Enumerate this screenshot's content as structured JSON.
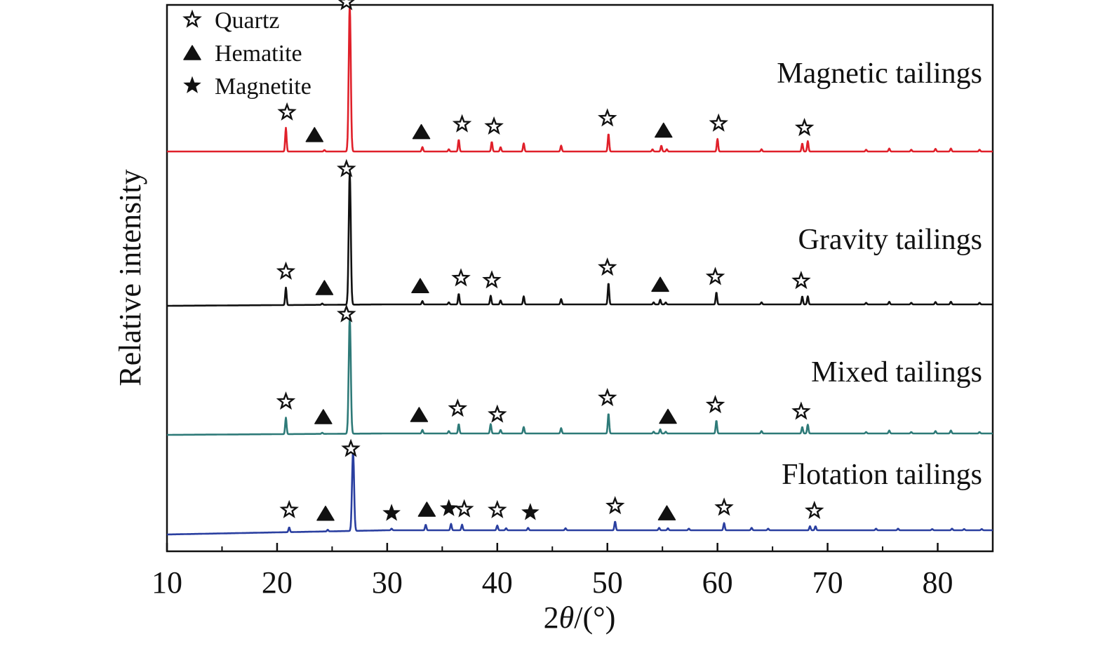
{
  "chart_data": {
    "type": "line",
    "xlabel": "2θ/(°)",
    "ylabel": "Relative intensity",
    "xlim": [
      10,
      85
    ],
    "x_ticks": [
      10,
      20,
      30,
      40,
      50,
      60,
      70,
      80
    ],
    "y_ticks": "none",
    "grid": false,
    "legend_position": "top-left",
    "legend": [
      {
        "name": "Quartz",
        "marker": "hollow-star"
      },
      {
        "name": "Hematite",
        "marker": "filled-triangle"
      },
      {
        "name": "Magnetite",
        "marker": "filled-star"
      }
    ],
    "series": [
      {
        "name": "Magnetic tailings",
        "color": "#e0202a",
        "peaks": [
          {
            "x": 20.8,
            "h": 0.16
          },
          {
            "x": 24.3,
            "h": 0.01
          },
          {
            "x": 26.6,
            "h": 1.0
          },
          {
            "x": 33.2,
            "h": 0.03
          },
          {
            "x": 35.6,
            "h": 0.015
          },
          {
            "x": 36.5,
            "h": 0.08
          },
          {
            "x": 39.5,
            "h": 0.065
          },
          {
            "x": 40.3,
            "h": 0.03
          },
          {
            "x": 42.4,
            "h": 0.055
          },
          {
            "x": 45.8,
            "h": 0.04
          },
          {
            "x": 50.1,
            "h": 0.12
          },
          {
            "x": 54.1,
            "h": 0.015
          },
          {
            "x": 54.9,
            "h": 0.04
          },
          {
            "x": 55.4,
            "h": 0.015
          },
          {
            "x": 60.0,
            "h": 0.085
          },
          {
            "x": 64.0,
            "h": 0.015
          },
          {
            "x": 67.7,
            "h": 0.055
          },
          {
            "x": 68.2,
            "h": 0.07
          },
          {
            "x": 73.5,
            "h": 0.012
          },
          {
            "x": 75.6,
            "h": 0.02
          },
          {
            "x": 77.6,
            "h": 0.012
          },
          {
            "x": 79.8,
            "h": 0.018
          },
          {
            "x": 81.2,
            "h": 0.02
          },
          {
            "x": 83.8,
            "h": 0.012
          }
        ],
        "markers": [
          {
            "type": "quartz",
            "x": 20.9
          },
          {
            "type": "hematite",
            "x": 23.4
          },
          {
            "type": "quartz",
            "x": 26.3
          },
          {
            "type": "hematite",
            "x": 33.1
          },
          {
            "type": "quartz",
            "x": 36.8
          },
          {
            "type": "quartz",
            "x": 39.7
          },
          {
            "type": "quartz",
            "x": 50.0
          },
          {
            "type": "hematite",
            "x": 55.1
          },
          {
            "type": "quartz",
            "x": 60.1
          },
          {
            "type": "quartz",
            "x": 67.9
          }
        ]
      },
      {
        "name": "Gravity tailings",
        "color": "#111111",
        "peaks": [
          {
            "x": 20.8,
            "h": 0.13
          },
          {
            "x": 24.1,
            "h": 0.01
          },
          {
            "x": 26.6,
            "h": 1.0
          },
          {
            "x": 33.2,
            "h": 0.025
          },
          {
            "x": 35.6,
            "h": 0.015
          },
          {
            "x": 36.5,
            "h": 0.08
          },
          {
            "x": 39.4,
            "h": 0.065
          },
          {
            "x": 40.3,
            "h": 0.03
          },
          {
            "x": 42.4,
            "h": 0.06
          },
          {
            "x": 45.8,
            "h": 0.04
          },
          {
            "x": 50.1,
            "h": 0.16
          },
          {
            "x": 54.2,
            "h": 0.015
          },
          {
            "x": 54.8,
            "h": 0.035
          },
          {
            "x": 55.3,
            "h": 0.015
          },
          {
            "x": 59.9,
            "h": 0.09
          },
          {
            "x": 64.0,
            "h": 0.015
          },
          {
            "x": 67.7,
            "h": 0.06
          },
          {
            "x": 68.2,
            "h": 0.06
          },
          {
            "x": 73.5,
            "h": 0.012
          },
          {
            "x": 75.6,
            "h": 0.02
          },
          {
            "x": 77.6,
            "h": 0.012
          },
          {
            "x": 79.8,
            "h": 0.018
          },
          {
            "x": 81.2,
            "h": 0.02
          },
          {
            "x": 83.8,
            "h": 0.012
          }
        ],
        "markers": [
          {
            "type": "quartz",
            "x": 20.8
          },
          {
            "type": "hematite",
            "x": 24.3
          },
          {
            "type": "quartz",
            "x": 26.3
          },
          {
            "type": "hematite",
            "x": 33.0
          },
          {
            "type": "quartz",
            "x": 36.7
          },
          {
            "type": "quartz",
            "x": 39.5
          },
          {
            "type": "quartz",
            "x": 50.0
          },
          {
            "type": "hematite",
            "x": 54.8
          },
          {
            "type": "quartz",
            "x": 59.8
          },
          {
            "type": "quartz",
            "x": 67.6
          }
        ]
      },
      {
        "name": "Mixed tailings",
        "color": "#2e7a78",
        "peaks": [
          {
            "x": 20.8,
            "h": 0.14
          },
          {
            "x": 24.1,
            "h": 0.01
          },
          {
            "x": 26.6,
            "h": 1.0
          },
          {
            "x": 33.2,
            "h": 0.03
          },
          {
            "x": 35.6,
            "h": 0.02
          },
          {
            "x": 36.5,
            "h": 0.08
          },
          {
            "x": 39.4,
            "h": 0.08
          },
          {
            "x": 40.3,
            "h": 0.03
          },
          {
            "x": 42.4,
            "h": 0.055
          },
          {
            "x": 45.8,
            "h": 0.045
          },
          {
            "x": 50.1,
            "h": 0.17
          },
          {
            "x": 54.2,
            "h": 0.015
          },
          {
            "x": 54.8,
            "h": 0.035
          },
          {
            "x": 55.3,
            "h": 0.015
          },
          {
            "x": 59.9,
            "h": 0.11
          },
          {
            "x": 64.0,
            "h": 0.02
          },
          {
            "x": 67.7,
            "h": 0.055
          },
          {
            "x": 68.2,
            "h": 0.075
          },
          {
            "x": 73.5,
            "h": 0.012
          },
          {
            "x": 75.6,
            "h": 0.025
          },
          {
            "x": 77.6,
            "h": 0.012
          },
          {
            "x": 79.8,
            "h": 0.02
          },
          {
            "x": 81.2,
            "h": 0.025
          },
          {
            "x": 83.8,
            "h": 0.012
          }
        ],
        "markers": [
          {
            "type": "quartz",
            "x": 20.8
          },
          {
            "type": "hematite",
            "x": 24.2
          },
          {
            "type": "quartz",
            "x": 26.3
          },
          {
            "type": "hematite",
            "x": 32.9
          },
          {
            "type": "quartz",
            "x": 36.4
          },
          {
            "type": "quartz",
            "x": 40.0
          },
          {
            "type": "quartz",
            "x": 50.0
          },
          {
            "type": "hematite",
            "x": 55.5
          },
          {
            "type": "quartz",
            "x": 59.8
          },
          {
            "type": "quartz",
            "x": 67.6
          }
        ]
      },
      {
        "name": "Flotation tailings",
        "color": "#2a3fa0",
        "peaks": [
          {
            "x": 21.1,
            "h": 0.06
          },
          {
            "x": 24.6,
            "h": 0.02
          },
          {
            "x": 26.9,
            "h": 1.0
          },
          {
            "x": 30.4,
            "h": 0.02
          },
          {
            "x": 33.5,
            "h": 0.07
          },
          {
            "x": 35.8,
            "h": 0.08
          },
          {
            "x": 36.8,
            "h": 0.07
          },
          {
            "x": 40.0,
            "h": 0.06
          },
          {
            "x": 40.8,
            "h": 0.025
          },
          {
            "x": 42.8,
            "h": 0.03
          },
          {
            "x": 46.2,
            "h": 0.025
          },
          {
            "x": 50.7,
            "h": 0.11
          },
          {
            "x": 54.7,
            "h": 0.03
          },
          {
            "x": 55.5,
            "h": 0.025
          },
          {
            "x": 57.4,
            "h": 0.02
          },
          {
            "x": 60.6,
            "h": 0.09
          },
          {
            "x": 63.1,
            "h": 0.03
          },
          {
            "x": 64.6,
            "h": 0.02
          },
          {
            "x": 68.4,
            "h": 0.05
          },
          {
            "x": 68.9,
            "h": 0.05
          },
          {
            "x": 74.4,
            "h": 0.02
          },
          {
            "x": 76.4,
            "h": 0.02
          },
          {
            "x": 79.5,
            "h": 0.015
          },
          {
            "x": 81.3,
            "h": 0.02
          },
          {
            "x": 82.4,
            "h": 0.015
          },
          {
            "x": 84.0,
            "h": 0.015
          }
        ],
        "markers": [
          {
            "type": "quartz",
            "x": 21.1
          },
          {
            "type": "hematite",
            "x": 24.4
          },
          {
            "type": "quartz",
            "x": 26.7
          },
          {
            "type": "magnetite",
            "x": 30.4
          },
          {
            "type": "hematite",
            "x": 33.6
          },
          {
            "type": "magnetite",
            "x": 35.6
          },
          {
            "type": "quartz",
            "x": 37.0
          },
          {
            "type": "quartz",
            "x": 40.0
          },
          {
            "type": "magnetite",
            "x": 43.0
          },
          {
            "type": "quartz",
            "x": 50.7
          },
          {
            "type": "hematite",
            "x": 55.4
          },
          {
            "type": "quartz",
            "x": 60.6
          },
          {
            "type": "quartz",
            "x": 68.8
          }
        ]
      }
    ]
  }
}
